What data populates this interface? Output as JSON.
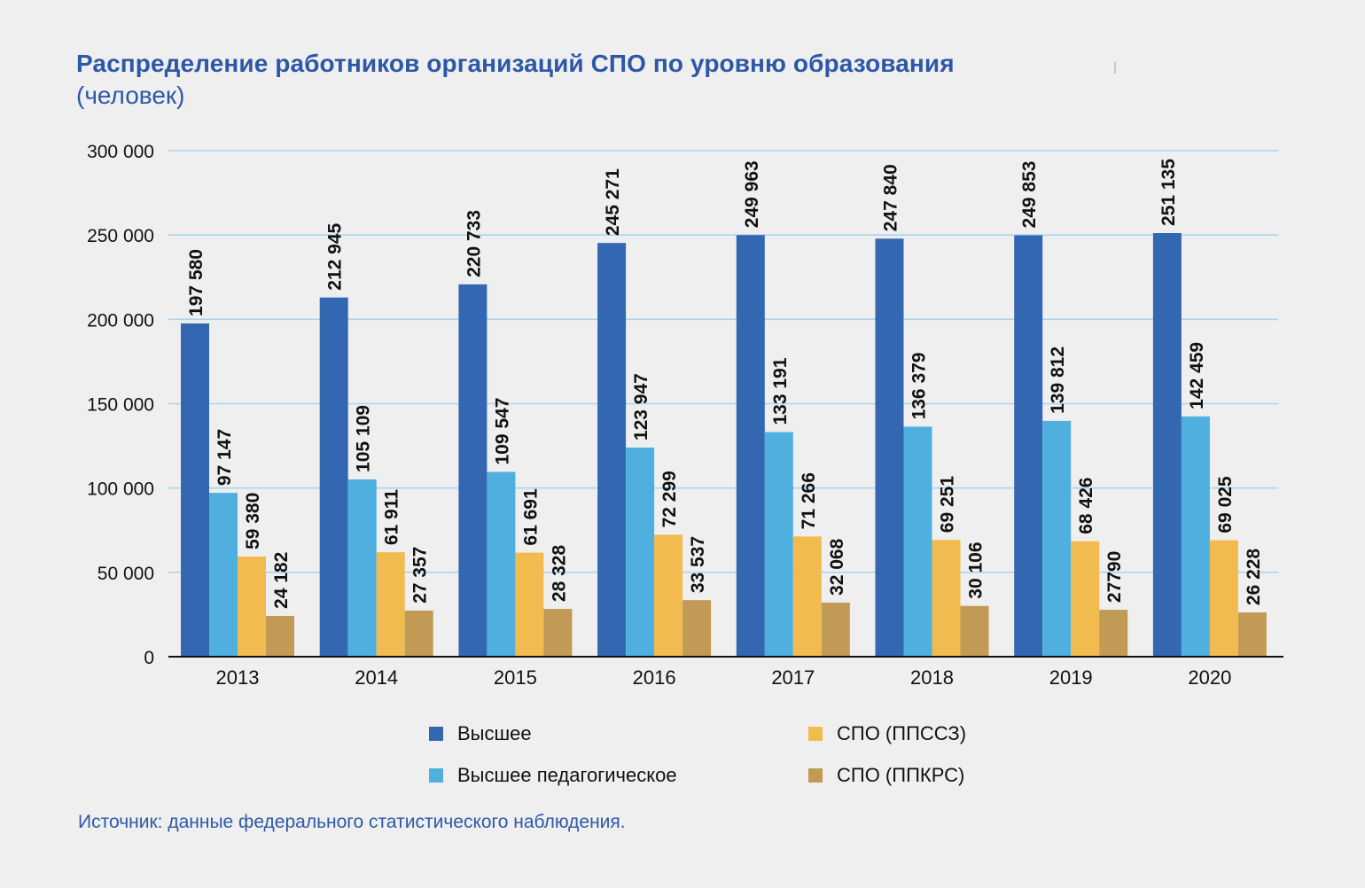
{
  "title": "Распределение работников организаций СПО по уровню образования",
  "subtitle": "(человек)",
  "source": "Источник: данные федерального статистического наблюдения.",
  "chart_data": {
    "type": "bar",
    "title": "Распределение работников организаций СПО по уровню образования",
    "subtitle": "(человек)",
    "categories": [
      "2013",
      "2014",
      "2015",
      "2016",
      "2017",
      "2018",
      "2019",
      "2020"
    ],
    "ylim": [
      0,
      300000
    ],
    "yticks": [
      0,
      50000,
      100000,
      150000,
      200000,
      250000,
      300000
    ],
    "ytick_labels": [
      "0",
      "50 000",
      "100 000",
      "150 000",
      "200 000",
      "250 000",
      "300 000"
    ],
    "grid": true,
    "legend_position": "bottom",
    "series": [
      {
        "name": "Высшее",
        "color": "#3467b2",
        "values": [
          197580,
          212945,
          220733,
          245271,
          249963,
          247840,
          249853,
          251135
        ],
        "labels": [
          "197 580",
          "212 945",
          "220 733",
          "245 271",
          "249 963",
          "247 840",
          "249 853",
          "251 135"
        ]
      },
      {
        "name": "Высшее педагогическое",
        "color": "#4fb0e0",
        "values": [
          97147,
          105109,
          109547,
          123947,
          133191,
          136379,
          139812,
          142459
        ],
        "labels": [
          "97 147",
          "105 109",
          "109 547",
          "123 947",
          "133 191",
          "136 379",
          "139 812",
          "142 459"
        ]
      },
      {
        "name": "СПО (ППССЗ)",
        "color": "#f2bb4f",
        "values": [
          59380,
          61911,
          61691,
          72299,
          71266,
          69251,
          68426,
          69025
        ],
        "labels": [
          "59 380",
          "61 911",
          "61 691",
          "72 299",
          "71 266",
          "69 251",
          "68 426",
          "69 025"
        ]
      },
      {
        "name": "СПО (ППКРС)",
        "color": "#c19a55",
        "values": [
          24182,
          27357,
          28328,
          33537,
          32068,
          30106,
          27790,
          26228
        ],
        "labels": [
          "24 182",
          "27 357",
          "28 328",
          "33 537",
          "32 068",
          "30 106",
          "27790",
          "26 228"
        ]
      }
    ]
  }
}
